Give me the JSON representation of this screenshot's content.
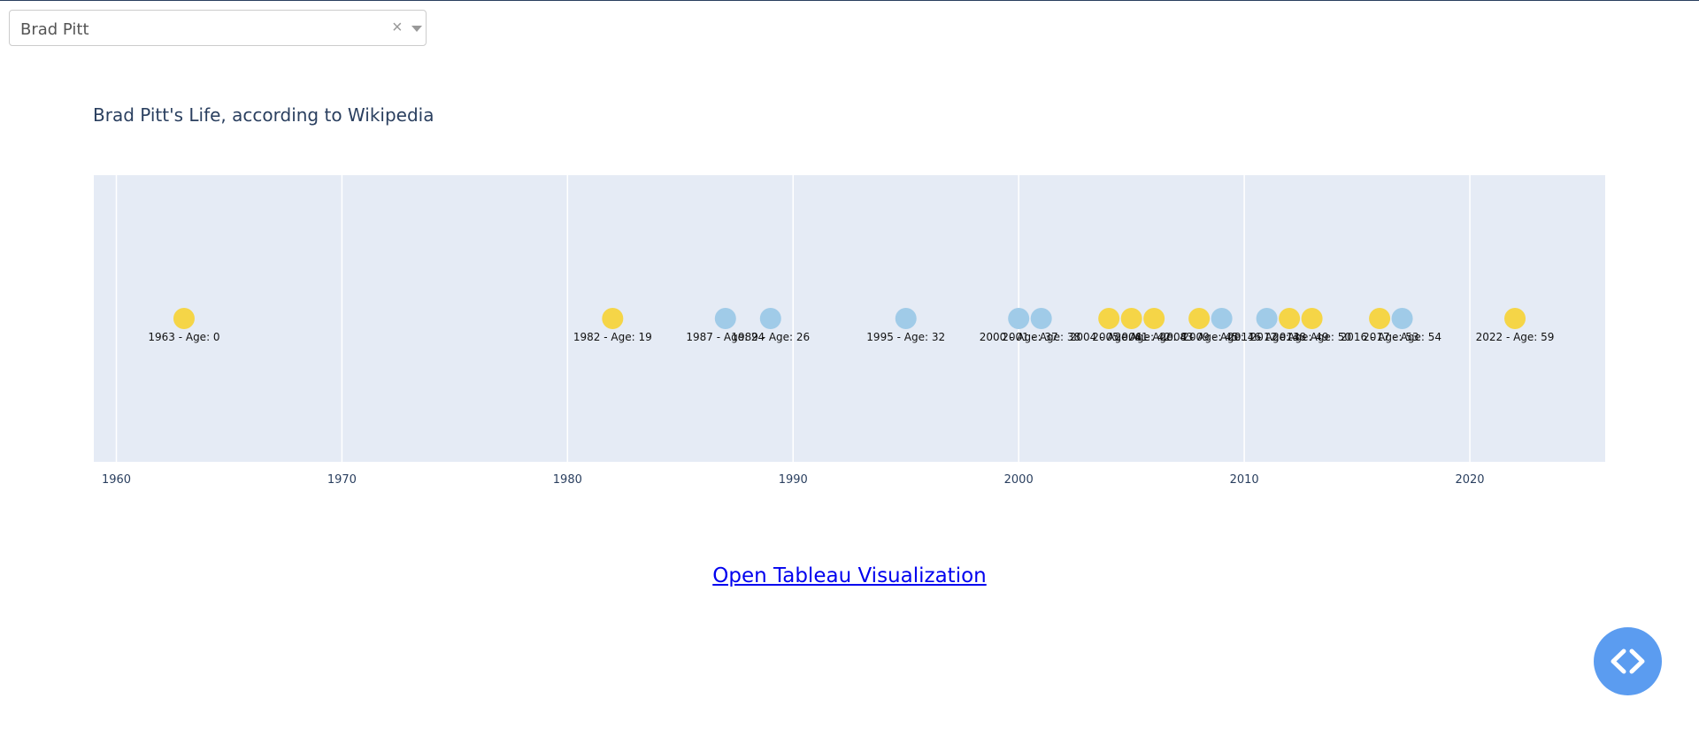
{
  "selector": {
    "value": "Brad Pitt",
    "clear_glyph": "×"
  },
  "link": {
    "label": "Open Tableau Visualization"
  },
  "fab": {
    "icon": "code-icon"
  },
  "colors": {
    "yellow": "#f5d547",
    "blue": "#a0cbe8",
    "plot_bg": "#e5ebf5",
    "grid": "#ffffff",
    "text": "#2a3f5f"
  },
  "chart_data": {
    "type": "scatter",
    "title": "Brad Pitt's Life, according to Wikipedia",
    "xlabel": "",
    "ylabel": "",
    "xlim": [
      1959,
      2026
    ],
    "x_ticks": [
      1960,
      1970,
      1980,
      1990,
      2000,
      2010,
      2020
    ],
    "grid": true,
    "points": [
      {
        "x": 1963,
        "label": "1963 - Age: 0",
        "color": "yellow"
      },
      {
        "x": 1982,
        "label": "1982 - Age: 19",
        "color": "yellow"
      },
      {
        "x": 1987,
        "label": "1987 - Age: 24",
        "color": "blue"
      },
      {
        "x": 1989,
        "label": "1989 - Age: 26",
        "color": "blue"
      },
      {
        "x": 1995,
        "label": "1995 - Age: 32",
        "color": "blue"
      },
      {
        "x": 2000,
        "label": "2000 - Age: 37",
        "color": "blue"
      },
      {
        "x": 2001,
        "label": "2001 - Age: 38",
        "color": "blue"
      },
      {
        "x": 2004,
        "label": "2004 - Age: 41",
        "color": "yellow"
      },
      {
        "x": 2005,
        "label": "2005 - Age: 42",
        "color": "yellow"
      },
      {
        "x": 2006,
        "label": "2006 - Age: 43",
        "color": "yellow"
      },
      {
        "x": 2008,
        "label": "2008 - Age: 45",
        "color": "yellow"
      },
      {
        "x": 2009,
        "label": "2009 - Age: 46",
        "color": "blue"
      },
      {
        "x": 2011,
        "label": "2011 - Age: 48",
        "color": "blue"
      },
      {
        "x": 2012,
        "label": "2012 - Age: 49",
        "color": "yellow"
      },
      {
        "x": 2013,
        "label": "2013 - Age: 50",
        "color": "yellow"
      },
      {
        "x": 2016,
        "label": "2016 - Age: 53",
        "color": "yellow"
      },
      {
        "x": 2017,
        "label": "2017 - Age: 54",
        "color": "blue"
      },
      {
        "x": 2022,
        "label": "2022 - Age: 59",
        "color": "yellow"
      }
    ]
  }
}
